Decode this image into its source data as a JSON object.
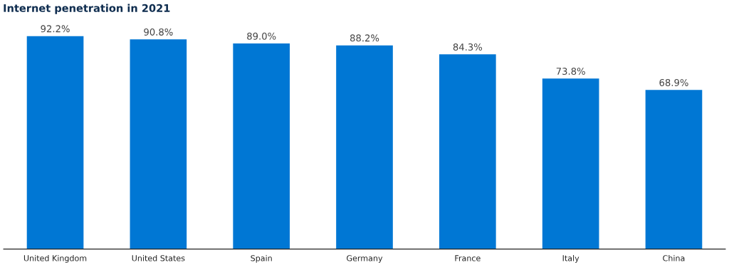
{
  "chart_data": {
    "type": "bar",
    "title": "Internet penetration in 2021",
    "categories": [
      "United Kingdom",
      "United States",
      "Spain",
      "Germany",
      "France",
      "Italy",
      "China"
    ],
    "values": [
      92.2,
      90.8,
      89.0,
      88.2,
      84.3,
      73.8,
      68.9
    ],
    "value_labels": [
      "92.2%",
      "90.8%",
      "89.0%",
      "88.2%",
      "84.3%",
      "73.8%",
      "68.9%"
    ],
    "color": "#0077d4",
    "grid": false,
    "legend": false
  }
}
